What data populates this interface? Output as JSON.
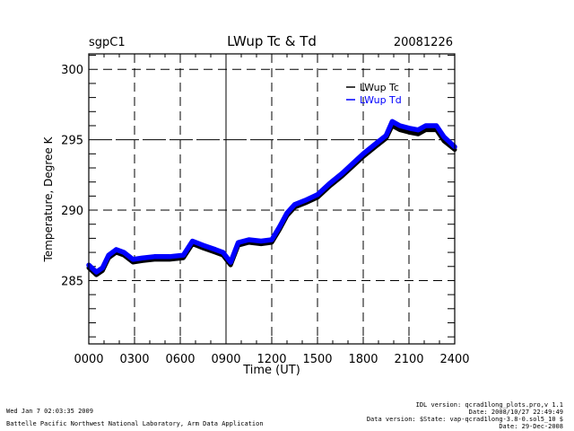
{
  "header": {
    "site": "sgpC1",
    "title": "LWup Tc & Td",
    "date": "20081226"
  },
  "footer": {
    "run_time": "Wed Jan  7 02:03:35 2009",
    "org": "Battelle Pacific Northwest National Laboratory, Arm Data Application",
    "idl_version": "IDL version: qcrad1long_plots.pro,v 1.1",
    "idl_date": "Date: 2008/10/27 22:49:49",
    "data_version": "Data version: $State: vap-qcrad1long-3.8-0.sol5_10 $",
    "data_date": "Date: 29-Dec-2008"
  },
  "chart_data": {
    "type": "line",
    "title": "LWup Tc & Td",
    "xlabel": "Time (UT)",
    "ylabel": "Temperature, Degree K",
    "xlim": [
      0,
      24
    ],
    "ylim": [
      280.5,
      301.1
    ],
    "xticks": [
      0,
      3,
      6,
      9,
      12,
      15,
      18,
      21,
      24
    ],
    "xtick_labels": [
      "0000",
      "0300",
      "0600",
      "0900",
      "1200",
      "1500",
      "1800",
      "2100",
      "2400"
    ],
    "yticks": [
      285,
      290,
      295,
      300
    ],
    "ytick_labels": [
      "285",
      "290",
      "295",
      "300"
    ],
    "grid": true,
    "legend": "top-right",
    "series": [
      {
        "name": "LWup Tc",
        "color": "#000000",
        "x": [
          0.0,
          0.5,
          0.9,
          1.3,
          1.8,
          2.3,
          2.9,
          3.5,
          4.3,
          5.3,
          6.2,
          6.8,
          7.5,
          8.3,
          8.8,
          9.3,
          9.8,
          10.5,
          11.3,
          12.0,
          12.5,
          13.0,
          13.5,
          14.2,
          15.0,
          15.8,
          16.6,
          17.3,
          18.0,
          18.8,
          19.5,
          19.9,
          20.4,
          21.1,
          21.6,
          22.1,
          22.8,
          23.3,
          24.0
        ],
        "y": [
          286.0,
          285.5,
          285.8,
          286.7,
          287.1,
          286.9,
          286.4,
          286.5,
          286.6,
          286.6,
          286.7,
          287.7,
          287.4,
          287.1,
          286.9,
          286.2,
          287.6,
          287.8,
          287.7,
          287.8,
          288.7,
          289.7,
          290.3,
          290.6,
          291.0,
          291.8,
          292.5,
          293.2,
          293.9,
          294.6,
          295.2,
          296.1,
          295.8,
          295.6,
          295.5,
          295.8,
          295.8,
          295.0,
          294.4
        ]
      },
      {
        "name": "LWup Td",
        "color": "#0000ff",
        "x": [
          0.0,
          0.5,
          0.9,
          1.3,
          1.8,
          2.3,
          2.9,
          3.5,
          4.3,
          5.3,
          6.2,
          6.8,
          7.5,
          8.3,
          8.8,
          9.3,
          9.8,
          10.5,
          11.3,
          12.0,
          12.5,
          13.0,
          13.5,
          14.2,
          15.0,
          15.8,
          16.6,
          17.3,
          18.0,
          18.8,
          19.5,
          19.9,
          20.4,
          21.1,
          21.6,
          22.1,
          22.8,
          23.3,
          24.0
        ],
        "y": [
          286.1,
          285.6,
          285.9,
          286.8,
          287.2,
          287.0,
          286.5,
          286.6,
          286.7,
          286.7,
          286.8,
          287.8,
          287.5,
          287.2,
          287.0,
          286.3,
          287.7,
          287.9,
          287.8,
          287.9,
          288.8,
          289.8,
          290.4,
          290.7,
          291.1,
          291.9,
          292.6,
          293.3,
          294.0,
          294.7,
          295.3,
          296.3,
          296.0,
          295.8,
          295.7,
          296.0,
          296.0,
          295.2,
          294.5
        ]
      }
    ]
  }
}
